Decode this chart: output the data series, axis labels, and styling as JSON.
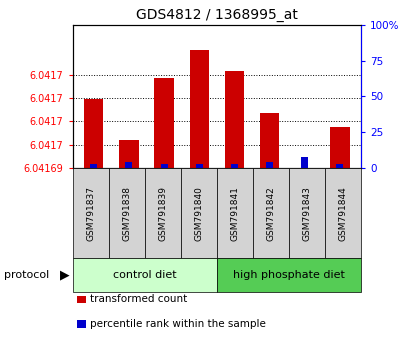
{
  "title": "GDS4812 / 1368995_at",
  "samples": [
    "GSM791837",
    "GSM791838",
    "GSM791839",
    "GSM791840",
    "GSM791841",
    "GSM791842",
    "GSM791843",
    "GSM791844"
  ],
  "transformed_counts": [
    6.04174,
    6.04171,
    6.041755,
    6.041775,
    6.04176,
    6.04173,
    6.04169,
    6.04172
  ],
  "percentile_ranks": [
    3,
    4,
    3,
    3,
    3,
    4,
    8,
    3
  ],
  "y_min": 6.04169,
  "y_max": 6.04178,
  "right_y_ticks": [
    0,
    25,
    50,
    75,
    100
  ],
  "right_y_tick_labels": [
    "0",
    "25",
    "50",
    "75",
    "100%"
  ],
  "bar_color_red": "#cc0000",
  "bar_color_blue": "#0000cc",
  "group1_label": "control diet",
  "group2_label": "high phosphate diet",
  "group1_color": "#ccffcc",
  "group2_color": "#55cc55",
  "protocol_label": "protocol",
  "legend_red": "transformed count",
  "legend_blue": "percentile rank within the sample"
}
